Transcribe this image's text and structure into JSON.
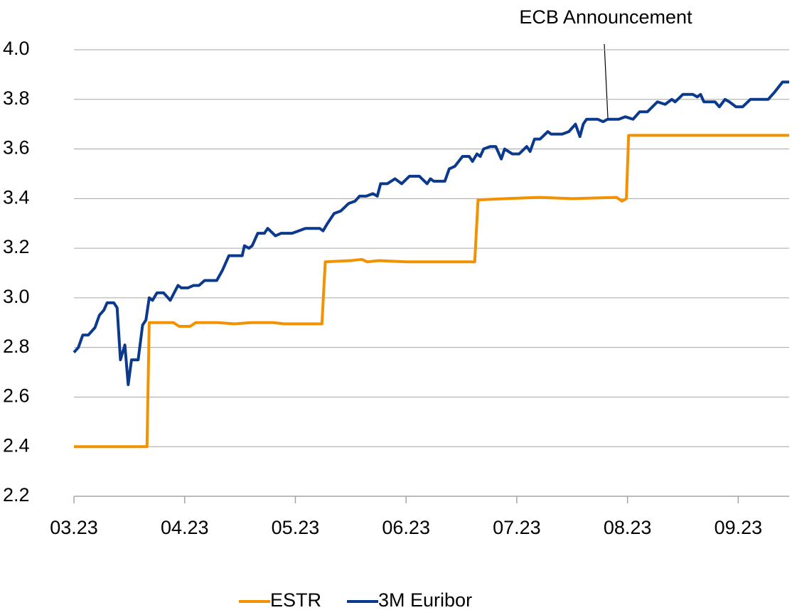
{
  "chart_data": {
    "type": "line",
    "annotation": "ECB Announcement",
    "xlim": [
      0,
      6.46
    ],
    "xticks": [
      {
        "value": 0,
        "label": "03.23"
      },
      {
        "value": 1,
        "label": "04.23"
      },
      {
        "value": 2,
        "label": "05.23"
      },
      {
        "value": 3,
        "label": "06.23"
      },
      {
        "value": 4,
        "label": "07.23"
      },
      {
        "value": 5,
        "label": "08.23"
      },
      {
        "value": 6,
        "label": "09.23"
      }
    ],
    "ylim": [
      2.2,
      4.0
    ],
    "yticks": [
      2.2,
      2.4,
      2.6,
      2.8,
      {
        "value": 3,
        "label": "3.0"
      },
      3.2,
      3.4,
      3.6,
      3.8,
      {
        "value": 4,
        "label": "4.0"
      }
    ],
    "grid": true,
    "legend": "bottom",
    "series": [
      {
        "name": "ESTR",
        "color": "#f39200",
        "x": [
          0,
          0.1,
          0.2,
          0.3,
          0.4,
          0.5,
          0.63,
          0.66,
          0.68,
          0.9,
          0.95,
          1.05,
          1.1,
          1.3,
          1.45,
          1.6,
          1.8,
          1.9,
          2.1,
          2.24,
          2.27,
          2.5,
          2.6,
          2.65,
          2.75,
          3.0,
          3.3,
          3.45,
          3.6,
          3.62,
          3.65,
          3.9,
          4.2,
          4.5,
          4.9,
          4.95,
          4.99,
          5.01,
          5.5,
          5.8,
          6.0,
          6.46
        ],
        "values": [
          2.4,
          2.4,
          2.4,
          2.4,
          2.4,
          2.4,
          2.4,
          2.4,
          2.9,
          2.9,
          2.885,
          2.885,
          2.9,
          2.9,
          2.895,
          2.9,
          2.9,
          2.895,
          2.895,
          2.895,
          3.145,
          3.15,
          3.155,
          3.145,
          3.15,
          3.145,
          3.145,
          3.145,
          3.145,
          3.145,
          3.395,
          3.4,
          3.405,
          3.4,
          3.405,
          3.39,
          3.4,
          3.655,
          3.655,
          3.655,
          3.655,
          3.655
        ]
      },
      {
        "name": "3M Euribor",
        "color": "#0b3a8c",
        "x": [
          0,
          0.04,
          0.08,
          0.13,
          0.19,
          0.23,
          0.27,
          0.3,
          0.36,
          0.39,
          0.42,
          0.46,
          0.49,
          0.52,
          0.58,
          0.62,
          0.65,
          0.68,
          0.71,
          0.75,
          0.81,
          0.87,
          0.94,
          0.97,
          1.03,
          1.08,
          1.13,
          1.18,
          1.29,
          1.34,
          1.4,
          1.52,
          1.54,
          1.58,
          1.61,
          1.66,
          1.72,
          1.75,
          1.82,
          1.87,
          1.97,
          2.03,
          2.09,
          2.22,
          2.25,
          2.29,
          2.35,
          2.41,
          2.48,
          2.54,
          2.58,
          2.64,
          2.7,
          2.74,
          2.77,
          2.83,
          2.9,
          2.96,
          3.03,
          3.12,
          3.19,
          3.22,
          3.25,
          3.35,
          3.39,
          3.44,
          3.51,
          3.57,
          3.6,
          3.64,
          3.67,
          3.7,
          3.76,
          3.81,
          3.86,
          3.89,
          3.96,
          4.02,
          4.09,
          4.12,
          4.16,
          4.21,
          4.28,
          4.31,
          4.41,
          4.47,
          4.53,
          4.57,
          4.6,
          4.63,
          4.73,
          4.78,
          4.82,
          4.92,
          4.98,
          5.05,
          5.11,
          5.18,
          5.27,
          5.34,
          5.4,
          5.43,
          5.5,
          5.59,
          5.63,
          5.66,
          5.69,
          5.79,
          5.83,
          5.88,
          5.92,
          5.98,
          6.04,
          6.11,
          6.27,
          6.33,
          6.4,
          6.46
        ],
        "values": [
          2.78,
          2.8,
          2.85,
          2.85,
          2.88,
          2.93,
          2.95,
          2.98,
          2.98,
          2.96,
          2.75,
          2.81,
          2.65,
          2.75,
          2.75,
          2.89,
          2.91,
          3.0,
          2.99,
          3.02,
          3.02,
          2.99,
          3.05,
          3.04,
          3.04,
          3.05,
          3.05,
          3.07,
          3.07,
          3.11,
          3.17,
          3.17,
          3.21,
          3.2,
          3.21,
          3.26,
          3.26,
          3.28,
          3.25,
          3.26,
          3.26,
          3.27,
          3.28,
          3.28,
          3.27,
          3.3,
          3.34,
          3.35,
          3.38,
          3.39,
          3.41,
          3.41,
          3.42,
          3.41,
          3.46,
          3.46,
          3.48,
          3.46,
          3.49,
          3.49,
          3.46,
          3.48,
          3.47,
          3.47,
          3.52,
          3.53,
          3.57,
          3.57,
          3.55,
          3.58,
          3.57,
          3.6,
          3.61,
          3.61,
          3.56,
          3.6,
          3.58,
          3.58,
          3.61,
          3.59,
          3.64,
          3.64,
          3.67,
          3.66,
          3.66,
          3.67,
          3.7,
          3.65,
          3.7,
          3.72,
          3.72,
          3.71,
          3.72,
          3.72,
          3.73,
          3.72,
          3.75,
          3.75,
          3.79,
          3.78,
          3.8,
          3.79,
          3.82,
          3.82,
          3.81,
          3.82,
          3.79,
          3.79,
          3.77,
          3.8,
          3.79,
          3.77,
          3.77,
          3.8,
          3.8,
          3.83,
          3.87,
          3.87
        ]
      }
    ]
  }
}
